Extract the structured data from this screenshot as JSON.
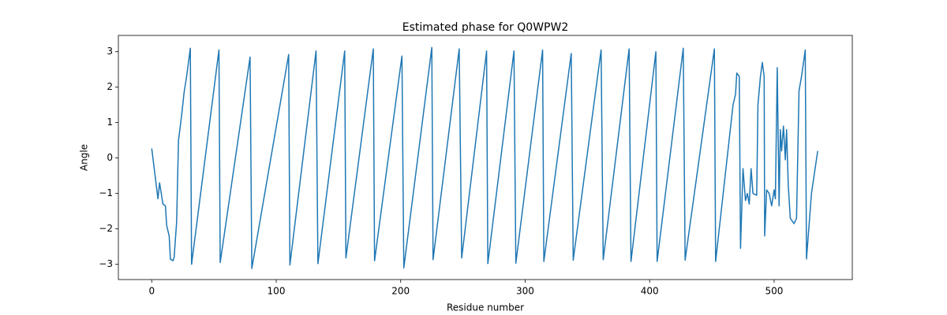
{
  "chart_data": {
    "type": "line",
    "title": "Estimated phase for Q0WPW2",
    "x_label": "Residue number",
    "y_label": "Angle",
    "xlim": [
      -26.8,
      562.8
    ],
    "ylim": [
      -3.43,
      3.46
    ],
    "xticks": [
      0,
      100,
      200,
      300,
      400,
      500
    ],
    "yticks": [
      {
        "value": -3,
        "label": "−3"
      },
      {
        "value": -2,
        "label": "−2"
      },
      {
        "value": -1,
        "label": "−1"
      },
      0,
      1,
      2,
      3
    ],
    "x": [
      0,
      5,
      6.3,
      9,
      11,
      12,
      14,
      15,
      17,
      18,
      20,
      21.5,
      24,
      26,
      28,
      31,
      32,
      54,
      55,
      79,
      80.4,
      110,
      111,
      132,
      133.5,
      155,
      156,
      178,
      179,
      201,
      202.5,
      225,
      226,
      247,
      249,
      269,
      270,
      291,
      292.5,
      314,
      315,
      337,
      338.6,
      361,
      362.7,
      383.5,
      385,
      405,
      406,
      427,
      428.5,
      452,
      453,
      467,
      469,
      470,
      472,
      473,
      475,
      477,
      478.5,
      480,
      481.5,
      483,
      486,
      487,
      489,
      490.5,
      492,
      492.4,
      494,
      496,
      498,
      500,
      501,
      502.5,
      504,
      505,
      506,
      507.5,
      509,
      510,
      511.4,
      513,
      516,
      518,
      520,
      522,
      525,
      526,
      530,
      535
    ],
    "series": [
      {
        "name": "phase",
        "color": "#1f77b4",
        "values": [
          0.27,
          -1.15,
          -0.7,
          -1.3,
          -1.35,
          -1.9,
          -2.2,
          -2.85,
          -2.9,
          -2.8,
          -1.8,
          0.5,
          1.2,
          1.85,
          2.3,
          3.1,
          -3.0,
          3.05,
          -2.95,
          2.85,
          -3.12,
          2.92,
          -3.02,
          3.02,
          -2.98,
          3.02,
          -2.82,
          3.08,
          -2.9,
          2.88,
          -3.1,
          3.12,
          -2.87,
          3.08,
          -2.82,
          3.02,
          -2.98,
          3.02,
          -2.97,
          3.05,
          -2.92,
          2.95,
          -2.88,
          3.05,
          -2.87,
          3.08,
          -2.92,
          3.0,
          -2.92,
          3.1,
          -2.88,
          3.08,
          -2.92,
          1.5,
          1.8,
          2.4,
          2.3,
          -2.55,
          -0.3,
          -1.2,
          -1.0,
          -1.3,
          -0.3,
          -1.0,
          -1.05,
          1.5,
          2.3,
          2.7,
          2.3,
          -2.2,
          -0.9,
          -1.0,
          -1.35,
          -0.9,
          -1.15,
          2.55,
          -1.35,
          0.8,
          0.2,
          0.9,
          -0.05,
          0.8,
          -0.8,
          -1.7,
          -1.85,
          -1.7,
          1.9,
          2.3,
          3.05,
          -2.85,
          -1.0,
          0.2
        ]
      }
    ]
  }
}
